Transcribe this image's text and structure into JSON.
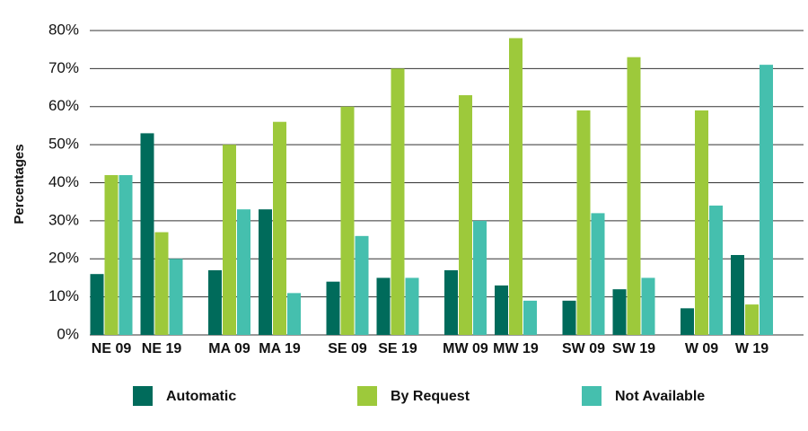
{
  "chart_data": {
    "type": "bar",
    "y_label": "Percentages",
    "categories": [
      "NE 09",
      "NE 19",
      "MA 09",
      "MA 19",
      "SE 09",
      "SE 19",
      "MW 09",
      "MW 19",
      "SW 09",
      "SW 19",
      "W 09",
      "W 19"
    ],
    "series": [
      {
        "name": "Automatic",
        "color": "#006b5b",
        "values": [
          16,
          53,
          17,
          33,
          14,
          15,
          17,
          13,
          9,
          12,
          7,
          21
        ]
      },
      {
        "name": "By Request",
        "color": "#9dc93b",
        "values": [
          42,
          27,
          50,
          56,
          60,
          70,
          63,
          78,
          59,
          73,
          59,
          8
        ]
      },
      {
        "name": "Not Available",
        "color": "#45bfae",
        "values": [
          42,
          20,
          33,
          11,
          26,
          15,
          30,
          9,
          32,
          15,
          34,
          71
        ]
      }
    ],
    "ylim": [
      0,
      80
    ],
    "yticks": [
      {
        "value": 0,
        "label": "0%"
      },
      {
        "value": 10,
        "label": "10%"
      },
      {
        "value": 20,
        "label": "20%"
      },
      {
        "value": 30,
        "label": "30%"
      },
      {
        "value": 40,
        "label": "40%"
      },
      {
        "value": 50,
        "label": "50%"
      },
      {
        "value": 60,
        "label": "60%"
      },
      {
        "value": 70,
        "label": "70%"
      },
      {
        "value": 80,
        "label": "80%"
      }
    ],
    "grid": true
  }
}
